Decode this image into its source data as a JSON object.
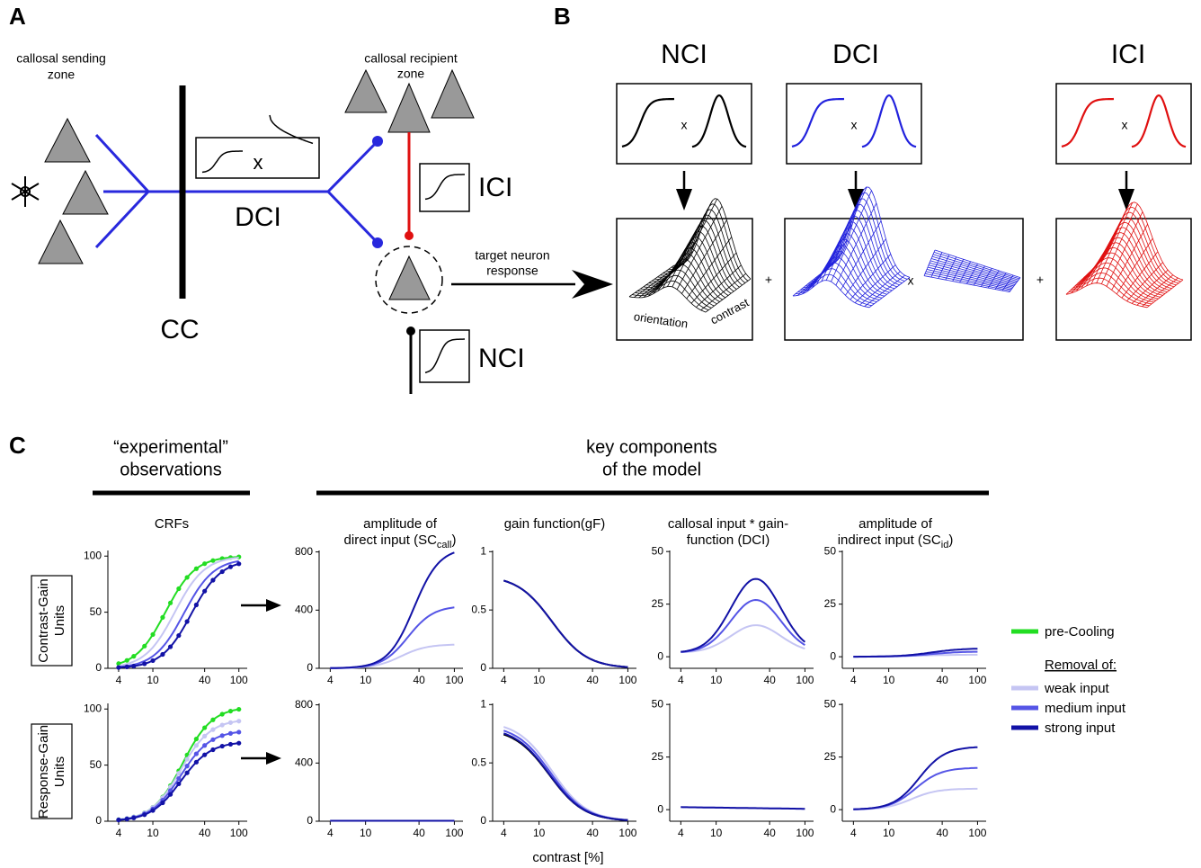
{
  "panel_a": {
    "label": "A",
    "sending_zone": [
      "callosal  sending",
      "zone"
    ],
    "recipient_zone": [
      "callosal  recipient",
      "zone"
    ],
    "multiply": "x",
    "dci": "DCI",
    "ici": "ICI",
    "cc": "CC",
    "target": [
      "target neuron",
      "response"
    ],
    "nci": "NCI"
  },
  "panel_b": {
    "label": "B",
    "columns": [
      {
        "title": "NCI",
        "multiply": "x",
        "color": "#000000"
      },
      {
        "title": "DCI",
        "multiply": "x",
        "color": "#2222dd"
      },
      {
        "title": "ICI",
        "multiply": "x",
        "color": "#e01010"
      }
    ],
    "axis_labels": [
      "orientation",
      "contrast"
    ],
    "operators": [
      "+",
      "x",
      "+"
    ]
  },
  "panel_c": {
    "label": "C",
    "groups": [
      [
        "“experimental”",
        "observations"
      ],
      [
        "key components",
        "of the model"
      ]
    ],
    "xticks": [
      4,
      10,
      40,
      100
    ],
    "xlim": [
      3,
      125
    ],
    "log_x": true,
    "columns": [
      {
        "title": [
          "CRFs"
        ],
        "yticks": [
          0,
          50,
          100
        ],
        "ylim": [
          0,
          105
        ]
      },
      {
        "title": [
          "amplitude of",
          "direct input (SC"
        ],
        "title_sub": "call",
        "title_suffix": ")",
        "yticks": [
          0,
          400,
          800
        ],
        "ylim": [
          0,
          810
        ]
      },
      {
        "title": [
          "gain function(gF)"
        ],
        "yticks": [
          0,
          0.5,
          1
        ],
        "ylim": [
          0,
          1.01
        ]
      },
      {
        "title": [
          "callosal input * gain-",
          "function (DCI)"
        ],
        "yticks": [
          0,
          25,
          50
        ],
        "ylim": [
          -5.5,
          50.5
        ]
      },
      {
        "title": [
          "amplitude of",
          "indirect input (SC"
        ],
        "title_sub": "id",
        "title_suffix": ")",
        "yticks": [
          0,
          25,
          50
        ],
        "ylim": [
          -5.5,
          50.5
        ]
      }
    ],
    "rows": [
      [
        "Contrast-Gain",
        "Units"
      ],
      [
        "Response-Gain",
        "Units"
      ]
    ],
    "legend": {
      "pre": {
        "name": "pre-Cooling",
        "color": "#22dd22"
      },
      "removal": "Removal of:",
      "items": [
        {
          "name": "weak input",
          "color": "#c5c5f3"
        },
        {
          "name": "medium input",
          "color": "#5555e6"
        },
        {
          "name": "strong input",
          "color": "#1212a6"
        }
      ]
    },
    "x_label": "contrast [%]"
  }
}
